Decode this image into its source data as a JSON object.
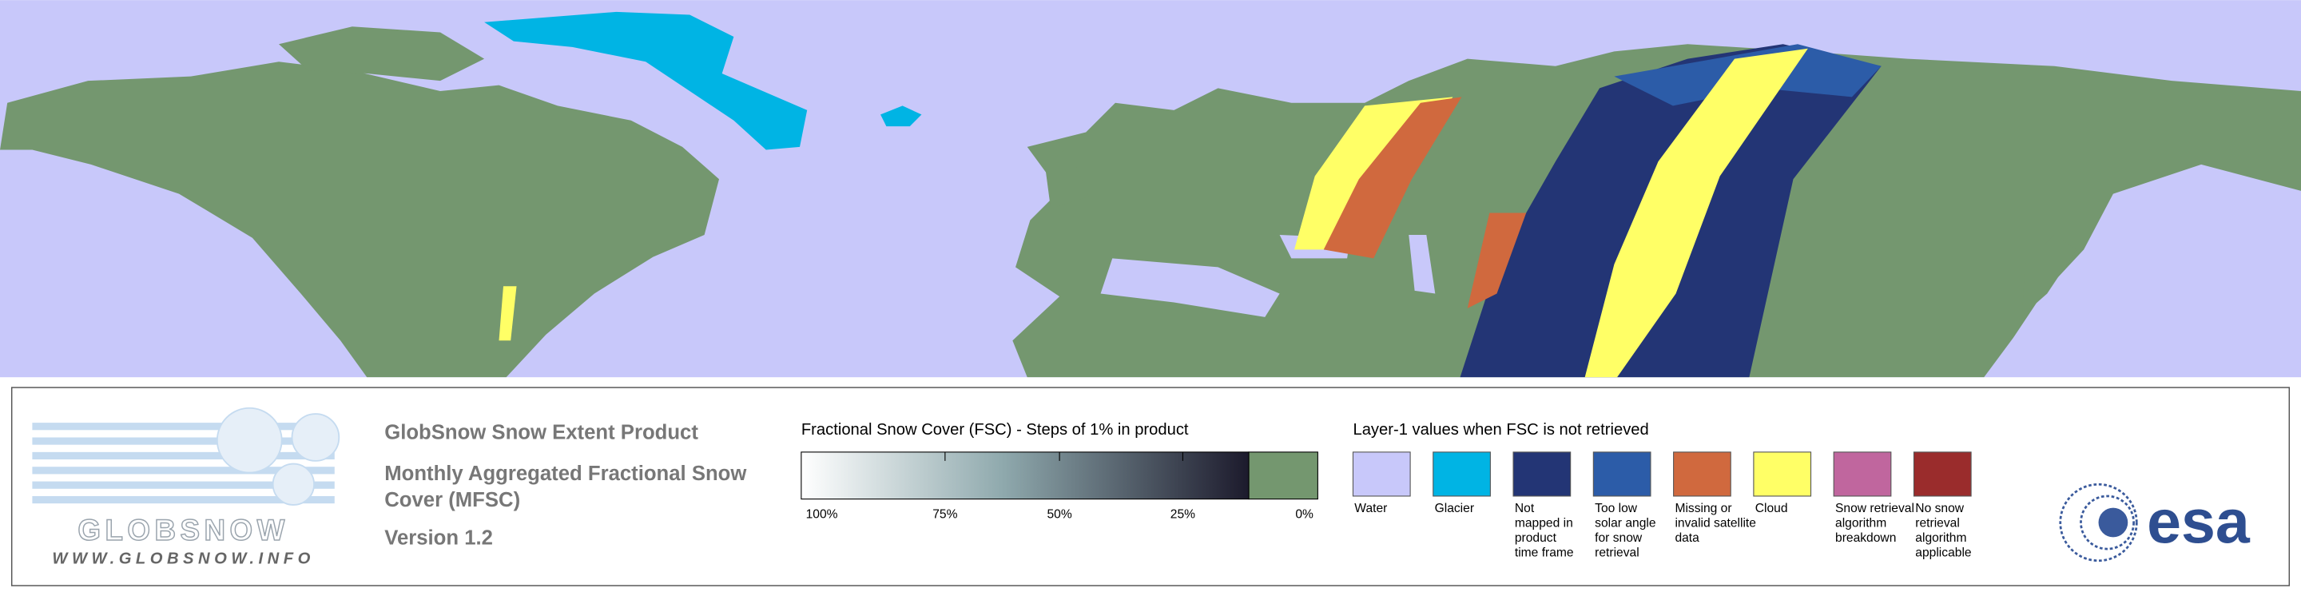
{
  "logo": {
    "name": "GLOBSNOW",
    "url": "WWW.GLOBSNOW.INFO"
  },
  "product": {
    "title": "GlobSnow Snow Extent Product",
    "subtitle": [
      "Monthly Aggregated Fractional Snow",
      "Cover (MFSC)"
    ],
    "version": "Version 1.2"
  },
  "fsc_scale": {
    "title": "Fractional Snow Cover (FSC) - Steps of 1% in product",
    "ticks": [
      "100%",
      "75%",
      "50%",
      "25%",
      "0%"
    ],
    "colors": [
      "#ffffff",
      "#1c1a2c"
    ],
    "no_snow_color": "#74976f"
  },
  "layer1": {
    "title": "Layer-1 values when FSC is not retrieved",
    "classes": [
      {
        "label": [
          "Water"
        ],
        "color": "#c8c8fa"
      },
      {
        "label": [
          "Glacier"
        ],
        "color": "#00b4e4"
      },
      {
        "label": [
          "Not",
          "mapped in",
          "product",
          "time frame"
        ],
        "color": "#233575"
      },
      {
        "label": [
          "Too low",
          "solar angle",
          "for snow",
          "retrieval"
        ],
        "color": "#2c5ca8"
      },
      {
        "label": [
          "Missing or",
          "invalid satellite",
          "data"
        ],
        "color": "#d0693e"
      },
      {
        "label": [
          "Cloud"
        ],
        "color": "#ffff66"
      },
      {
        "label": [
          "Snow retrieval",
          "algorithm",
          "breakdown"
        ],
        "color": "#c0669e"
      },
      {
        "label": [
          "No snow",
          "retrieval",
          "algorithm",
          "applicable"
        ],
        "color": "#9a2c2c"
      }
    ]
  },
  "esa_logo": "esa"
}
